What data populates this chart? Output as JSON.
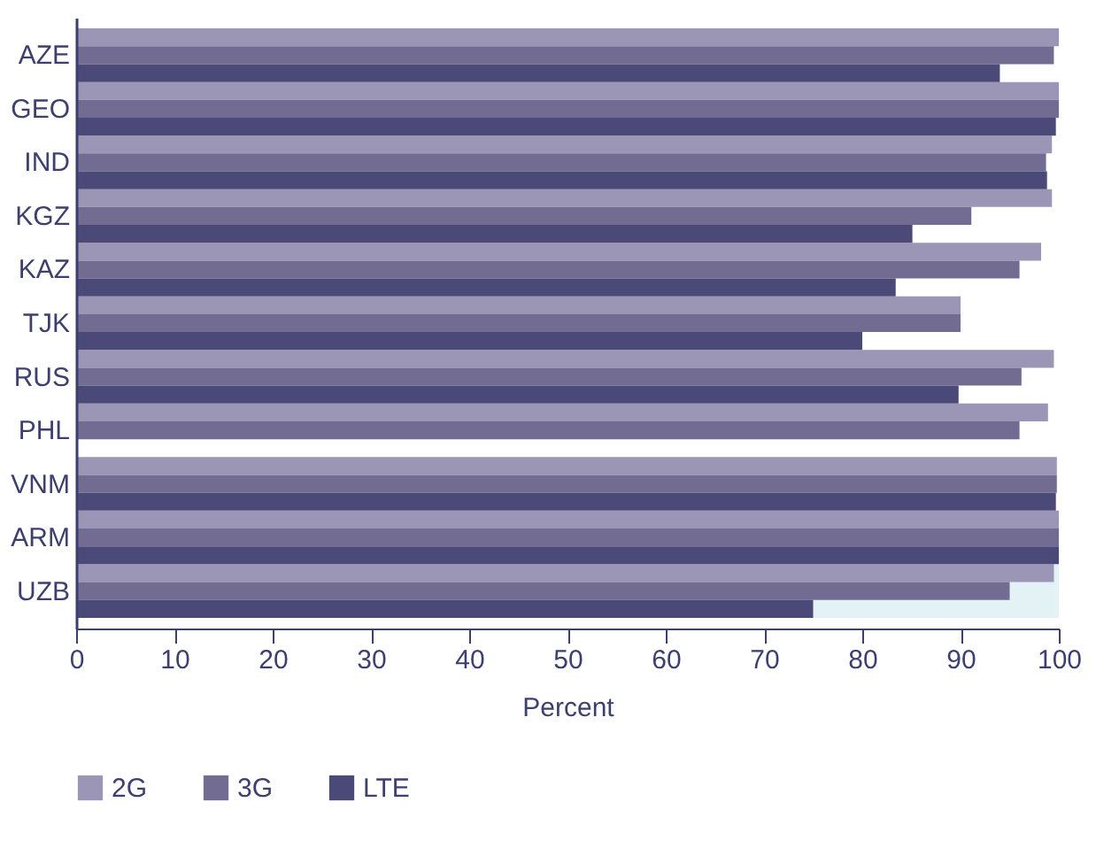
{
  "chart_data": {
    "type": "bar",
    "orientation": "horizontal",
    "xlabel": "Percent",
    "categories": [
      "AZE",
      "GEO",
      "IND",
      "KGZ",
      "KAZ",
      "TJK",
      "RUS",
      "PHL",
      "VNM",
      "ARM",
      "UZB"
    ],
    "series": [
      {
        "name": "2G",
        "color": "#9b96b5",
        "values": [
          100,
          100,
          99.3,
          99.3,
          98.2,
          90.0,
          99.5,
          98.9,
          99.8,
          100,
          99.5
        ]
      },
      {
        "name": "3G",
        "color": "#726c93",
        "values": [
          99.5,
          100,
          98.7,
          91.1,
          96.0,
          90.0,
          96.2,
          96.0,
          99.8,
          100,
          95.0
        ]
      },
      {
        "name": "LTE",
        "color": "#4b4978",
        "values": [
          94.0,
          99.7,
          98.8,
          85.1,
          83.4,
          80.0,
          89.8,
          null,
          99.7,
          100,
          75.0
        ]
      }
    ],
    "bands": [
      {
        "axis": "y",
        "from": "UZB",
        "to": "UZB",
        "color": "#e3f2f5"
      }
    ],
    "xlim": [
      0,
      100
    ],
    "xticks": [
      0,
      10,
      20,
      30,
      40,
      50,
      60,
      70,
      80,
      90,
      100
    ],
    "grid": false,
    "legend": "bottom"
  }
}
